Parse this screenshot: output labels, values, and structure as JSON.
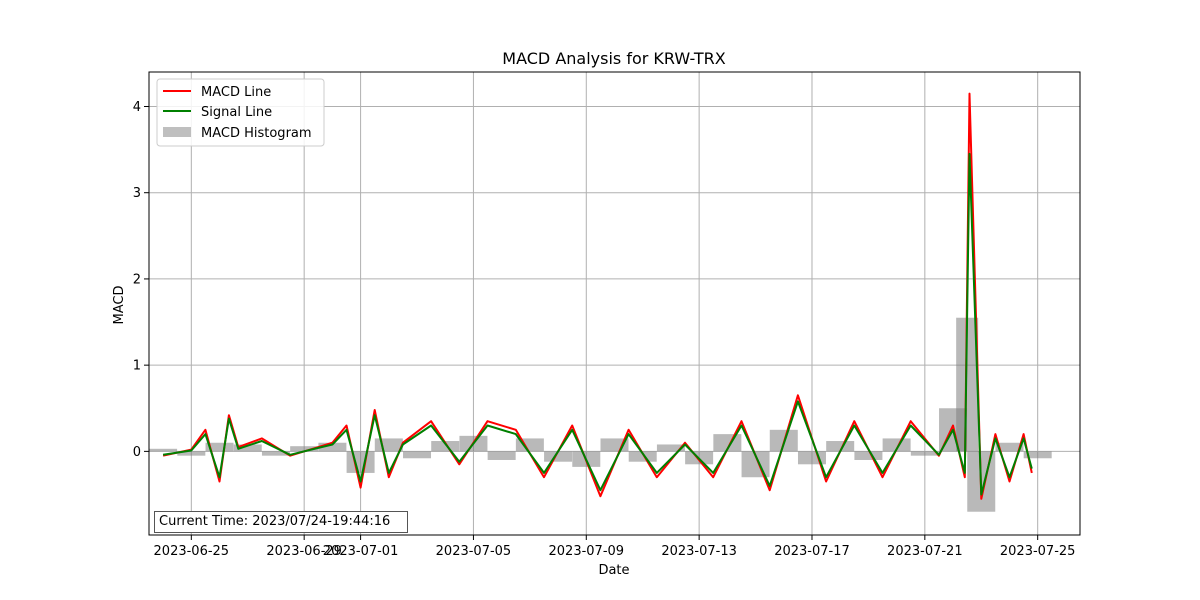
{
  "chart_data": {
    "type": "line",
    "title": "MACD Analysis for KRW-TRX",
    "xlabel": "Date",
    "ylabel": "MACD",
    "x_range": [
      "2023-06-23T12:00",
      "2023-07-26T12:00"
    ],
    "ylim": [
      -0.97,
      4.4
    ],
    "grid": true,
    "legend_placement": "upper-left",
    "x_ticks": [
      {
        "date": "2023-06-25",
        "label": "2023-06-25"
      },
      {
        "date": "2023-06-29",
        "label": "2023-06-29"
      },
      {
        "date": "2023-07-01",
        "label": "2023-07-01"
      },
      {
        "date": "2023-07-05",
        "label": "2023-07-05"
      },
      {
        "date": "2023-07-09",
        "label": "2023-07-09"
      },
      {
        "date": "2023-07-13",
        "label": "2023-07-13"
      },
      {
        "date": "2023-07-17",
        "label": "2023-07-17"
      },
      {
        "date": "2023-07-21",
        "label": "2023-07-21"
      },
      {
        "date": "2023-07-25",
        "label": "2023-07-25"
      }
    ],
    "y_ticks": [
      0,
      1,
      2,
      3,
      4
    ],
    "series": [
      {
        "name": "MACD Line",
        "color": "#ff0000",
        "x": [
          "2023-06-24T00:00",
          "2023-06-25T00:00",
          "2023-06-25T12:00",
          "2023-06-26T00:00",
          "2023-06-26T08:00",
          "2023-06-26T16:00",
          "2023-06-27T12:00",
          "2023-06-28T12:00",
          "2023-06-29T12:00",
          "2023-06-30T00:00",
          "2023-06-30T12:00",
          "2023-07-01T00:00",
          "2023-07-01T12:00",
          "2023-07-02T00:00",
          "2023-07-02T12:00",
          "2023-07-03T12:00",
          "2023-07-04T12:00",
          "2023-07-05T12:00",
          "2023-07-06T12:00",
          "2023-07-07T12:00",
          "2023-07-08T12:00",
          "2023-07-09T12:00",
          "2023-07-10T12:00",
          "2023-07-11T12:00",
          "2023-07-12T12:00",
          "2023-07-13T12:00",
          "2023-07-14T12:00",
          "2023-07-15T12:00",
          "2023-07-16T12:00",
          "2023-07-17T12:00",
          "2023-07-18T12:00",
          "2023-07-19T12:00",
          "2023-07-20T12:00",
          "2023-07-21T12:00",
          "2023-07-22T00:00",
          "2023-07-22T10:00",
          "2023-07-22T14:00",
          "2023-07-23T00:00",
          "2023-07-23T12:00",
          "2023-07-24T00:00",
          "2023-07-24T12:00",
          "2023-07-24T19:00"
        ],
        "values": [
          -0.05,
          0.02,
          0.25,
          -0.35,
          0.42,
          0.05,
          0.15,
          -0.05,
          0.05,
          0.1,
          0.3,
          -0.42,
          0.48,
          -0.3,
          0.1,
          0.35,
          -0.15,
          0.35,
          0.25,
          -0.3,
          0.3,
          -0.52,
          0.25,
          -0.3,
          0.1,
          -0.3,
          0.35,
          -0.45,
          0.65,
          -0.35,
          0.35,
          -0.3,
          0.35,
          -0.05,
          0.3,
          -0.3,
          4.15,
          -0.55,
          0.2,
          -0.35,
          0.2,
          -0.25
        ]
      },
      {
        "name": "Signal Line",
        "color": "#008000",
        "x": [
          "2023-06-24T00:00",
          "2023-06-25T00:00",
          "2023-06-25T12:00",
          "2023-06-26T00:00",
          "2023-06-26T08:00",
          "2023-06-26T16:00",
          "2023-06-27T12:00",
          "2023-06-28T12:00",
          "2023-06-29T12:00",
          "2023-06-30T00:00",
          "2023-06-30T12:00",
          "2023-07-01T00:00",
          "2023-07-01T12:00",
          "2023-07-02T00:00",
          "2023-07-02T12:00",
          "2023-07-03T12:00",
          "2023-07-04T12:00",
          "2023-07-05T12:00",
          "2023-07-06T12:00",
          "2023-07-07T12:00",
          "2023-07-08T12:00",
          "2023-07-09T12:00",
          "2023-07-10T12:00",
          "2023-07-11T12:00",
          "2023-07-12T12:00",
          "2023-07-13T12:00",
          "2023-07-14T12:00",
          "2023-07-15T12:00",
          "2023-07-16T12:00",
          "2023-07-17T12:00",
          "2023-07-18T12:00",
          "2023-07-19T12:00",
          "2023-07-20T12:00",
          "2023-07-21T12:00",
          "2023-07-22T00:00",
          "2023-07-22T10:00",
          "2023-07-22T14:00",
          "2023-07-23T00:00",
          "2023-07-23T12:00",
          "2023-07-24T00:00",
          "2023-07-24T12:00",
          "2023-07-24T19:00"
        ],
        "values": [
          -0.04,
          0.01,
          0.2,
          -0.3,
          0.38,
          0.03,
          0.12,
          -0.04,
          0.04,
          0.08,
          0.25,
          -0.35,
          0.42,
          -0.25,
          0.08,
          0.3,
          -0.12,
          0.3,
          0.2,
          -0.25,
          0.25,
          -0.45,
          0.2,
          -0.25,
          0.08,
          -0.25,
          0.3,
          -0.4,
          0.58,
          -0.3,
          0.3,
          -0.25,
          0.3,
          -0.04,
          0.25,
          -0.25,
          3.45,
          -0.5,
          0.15,
          -0.3,
          0.15,
          -0.2
        ]
      },
      {
        "name": "MACD Histogram",
        "color": "#808080",
        "x": [
          "2023-06-24T00:00",
          "2023-06-25T00:00",
          "2023-06-26T00:00",
          "2023-06-27T00:00",
          "2023-06-28T00:00",
          "2023-06-29T00:00",
          "2023-06-30T00:00",
          "2023-07-01T00:00",
          "2023-07-02T00:00",
          "2023-07-03T00:00",
          "2023-07-04T00:00",
          "2023-07-05T00:00",
          "2023-07-06T00:00",
          "2023-07-07T00:00",
          "2023-07-08T00:00",
          "2023-07-09T00:00",
          "2023-07-10T00:00",
          "2023-07-11T00:00",
          "2023-07-12T00:00",
          "2023-07-13T00:00",
          "2023-07-14T00:00",
          "2023-07-15T00:00",
          "2023-07-16T00:00",
          "2023-07-17T00:00",
          "2023-07-18T00:00",
          "2023-07-19T00:00",
          "2023-07-20T00:00",
          "2023-07-21T00:00",
          "2023-07-22T00:00",
          "2023-07-22T12:00",
          "2023-07-23T00:00",
          "2023-07-24T00:00",
          "2023-07-25T00:00"
        ],
        "values": [
          0.03,
          -0.05,
          0.1,
          0.08,
          -0.05,
          0.06,
          0.1,
          -0.25,
          0.15,
          -0.08,
          0.12,
          0.18,
          -0.1,
          0.15,
          -0.12,
          -0.18,
          0.15,
          -0.12,
          0.08,
          -0.15,
          0.2,
          -0.3,
          0.25,
          -0.15,
          0.12,
          -0.1,
          0.15,
          -0.05,
          0.5,
          1.55,
          -0.7,
          0.1,
          -0.08
        ]
      }
    ]
  },
  "legend": {
    "items": [
      "MACD Line",
      "Signal Line",
      "MACD Histogram"
    ]
  },
  "annotation": {
    "current_time": "Current Time: 2023/07/24-19:44:16"
  }
}
